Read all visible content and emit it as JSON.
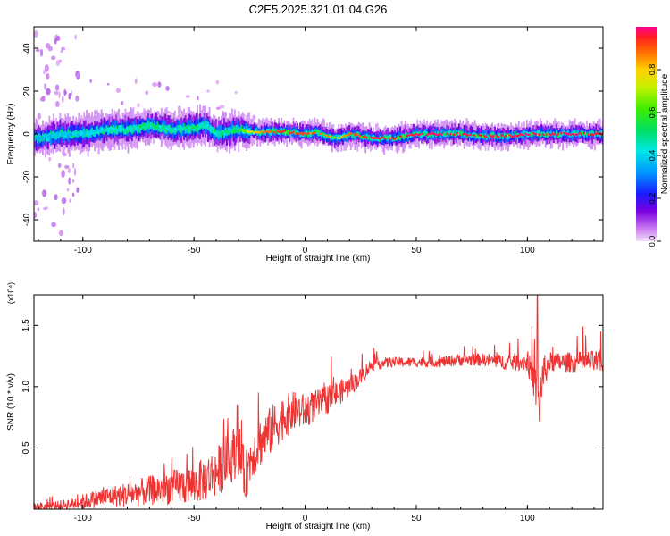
{
  "title": "C2E5.2025.321.01.04.G26",
  "chart_data": [
    {
      "type": "heatmap",
      "xlabel": "Height of straight line (km)",
      "ylabel": "Frequency (Hz)",
      "xlim": [
        -122,
        134
      ],
      "ylim": [
        -50,
        50
      ],
      "x_ticks": [
        -100,
        -50,
        0,
        50,
        100
      ],
      "x_tick_labels": [
        "-100",
        "-50",
        "0",
        "50",
        "100"
      ],
      "y_ticks": [
        -40,
        -20,
        0,
        20,
        40
      ],
      "y_tick_labels": [
        "-40",
        "-20",
        "0",
        "20",
        "40"
      ],
      "colorbar": {
        "label": "Normalized spectral amplitude",
        "range": [
          0,
          1
        ],
        "ticks": [
          0.0,
          0.2,
          0.4,
          0.6,
          0.8
        ],
        "tick_labels": [
          "0.0",
          "0.2",
          "0.4",
          "0.6",
          "0.8"
        ]
      },
      "ridge": {
        "x": [
          -120,
          -110,
          -100,
          -90,
          -80,
          -70,
          -60,
          -50,
          -45,
          -40,
          -35,
          -30,
          -25,
          -20,
          -10,
          0,
          5,
          10,
          15,
          20,
          30,
          40,
          50,
          60,
          70,
          80,
          90,
          100,
          110,
          120,
          134
        ],
        "frequency_hz": [
          -2,
          0,
          0,
          2,
          2,
          4,
          2,
          3,
          4,
          0,
          1,
          2,
          1,
          1,
          1,
          0,
          1,
          -1,
          -2,
          0,
          -2,
          -2,
          0,
          0,
          0,
          -1,
          -1,
          0,
          0,
          0,
          0
        ],
        "amplitude": [
          0.35,
          0.38,
          0.4,
          0.42,
          0.45,
          0.5,
          0.45,
          0.5,
          0.48,
          0.45,
          0.5,
          0.55,
          0.75,
          0.85,
          0.95,
          0.92,
          0.9,
          0.85,
          0.8,
          0.9,
          0.95,
          0.95,
          0.97,
          0.98,
          0.97,
          0.96,
          0.97,
          0.98,
          0.97,
          0.98,
          0.96
        ]
      }
    },
    {
      "type": "line",
      "xlabel": "Height of straight line (km)",
      "ylabel": "SNR (10 * v/v)",
      "y_multiplier": "(x10⁴)",
      "xlim": [
        -122,
        134
      ],
      "ylim": [
        0,
        1.75
      ],
      "x_ticks": [
        -100,
        -50,
        0,
        50,
        100
      ],
      "x_tick_labels": [
        "-100",
        "-50",
        "0",
        "50",
        "100"
      ],
      "y_ticks": [
        0.5,
        1.0,
        1.5
      ],
      "y_tick_labels": [
        "0.5",
        "1.0",
        "1.5"
      ],
      "color": "#ee3333",
      "series": [
        {
          "x": [
            -122,
            -110,
            -100,
            -90,
            -80,
            -70,
            -60,
            -50,
            -45,
            -40,
            -35,
            -30,
            -27,
            -24,
            -20,
            -15,
            -10,
            -5,
            0,
            5,
            10,
            15,
            20,
            25,
            30,
            40,
            50,
            60,
            70,
            80,
            90,
            100,
            103,
            105,
            107,
            110,
            120,
            134
          ],
          "values": [
            0.02,
            0.03,
            0.06,
            0.1,
            0.12,
            0.15,
            0.18,
            0.2,
            0.25,
            0.3,
            0.4,
            0.5,
            0.25,
            0.45,
            0.55,
            0.65,
            0.75,
            0.8,
            0.8,
            0.85,
            0.9,
            0.95,
            1.0,
            1.08,
            1.18,
            1.2,
            1.2,
            1.2,
            1.22,
            1.22,
            1.2,
            1.2,
            1.05,
            0.85,
            1.1,
            1.2,
            1.2,
            1.2
          ]
        }
      ],
      "noise_amplitude": [
        0.03,
        0.04,
        0.06,
        0.08,
        0.1,
        0.12,
        0.14,
        0.16,
        0.18,
        0.2,
        0.22,
        0.22,
        0.2,
        0.2,
        0.2,
        0.2,
        0.18,
        0.16,
        0.14,
        0.12,
        0.12,
        0.1,
        0.08,
        0.07,
        0.05,
        0.04,
        0.04,
        0.04,
        0.05,
        0.05,
        0.06,
        0.08,
        0.15,
        0.2,
        0.15,
        0.08,
        0.08,
        0.1
      ],
      "spikes": [
        {
          "x": 104.5,
          "value": 1.75
        },
        {
          "x": 105.5,
          "value": 0.72
        },
        {
          "x": -30.5,
          "value": 0.85
        },
        {
          "x": -21,
          "value": 0.95
        }
      ]
    }
  ]
}
